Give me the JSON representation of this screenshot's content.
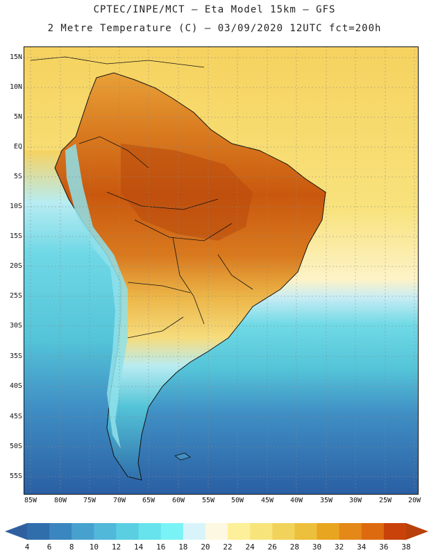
{
  "header": {
    "line1": "CPTEC/INPE/MCT –  Eta Model 15km – GFS",
    "line2": "2 Metre Temperature (C) – 03/09/2020 12UTC fct=200h"
  },
  "map": {
    "lat_labels": [
      "15N",
      "10N",
      "5N",
      "EQ",
      "5S",
      "10S",
      "15S",
      "20S",
      "25S",
      "30S",
      "35S",
      "40S",
      "45S",
      "50S",
      "55S"
    ],
    "lon_labels": [
      "85W",
      "80W",
      "75W",
      "70W",
      "65W",
      "60W",
      "55W",
      "50W",
      "45W",
      "40W",
      "35W",
      "30W",
      "25W",
      "20W"
    ],
    "colors": {
      "ocean_cold": "#2a5fa3",
      "ocean_cool": "#3f8ec4",
      "ocean_mid": "#54c4d8",
      "ocean_warm": "#8ae4ee",
      "ocean_tropical": "#f6d25f",
      "land_hot": "#d36a14",
      "land_very_hot": "#b8490c",
      "land_warm": "#e8a037",
      "andes": "#8fe0ea",
      "border": "#111111"
    }
  },
  "colorbar": {
    "labels": [
      "4",
      "6",
      "8",
      "10",
      "12",
      "14",
      "16",
      "18",
      "20",
      "22",
      "24",
      "26",
      "28",
      "30",
      "32",
      "34",
      "36",
      "38"
    ],
    "colors": [
      "#2f6eab",
      "#3a86c0",
      "#47a1cf",
      "#51b8da",
      "#5acfe2",
      "#66e3ec",
      "#7af3f6",
      "#d8f4fa",
      "#fdf8e2",
      "#fdf09a",
      "#f7e57c",
      "#f1d35c",
      "#ecbf3c",
      "#e8a520",
      "#e48818",
      "#de6a10",
      "#c8420a"
    ],
    "left_arrow_color": "#2f5f9f",
    "right_arrow_color": "#b8400a"
  }
}
